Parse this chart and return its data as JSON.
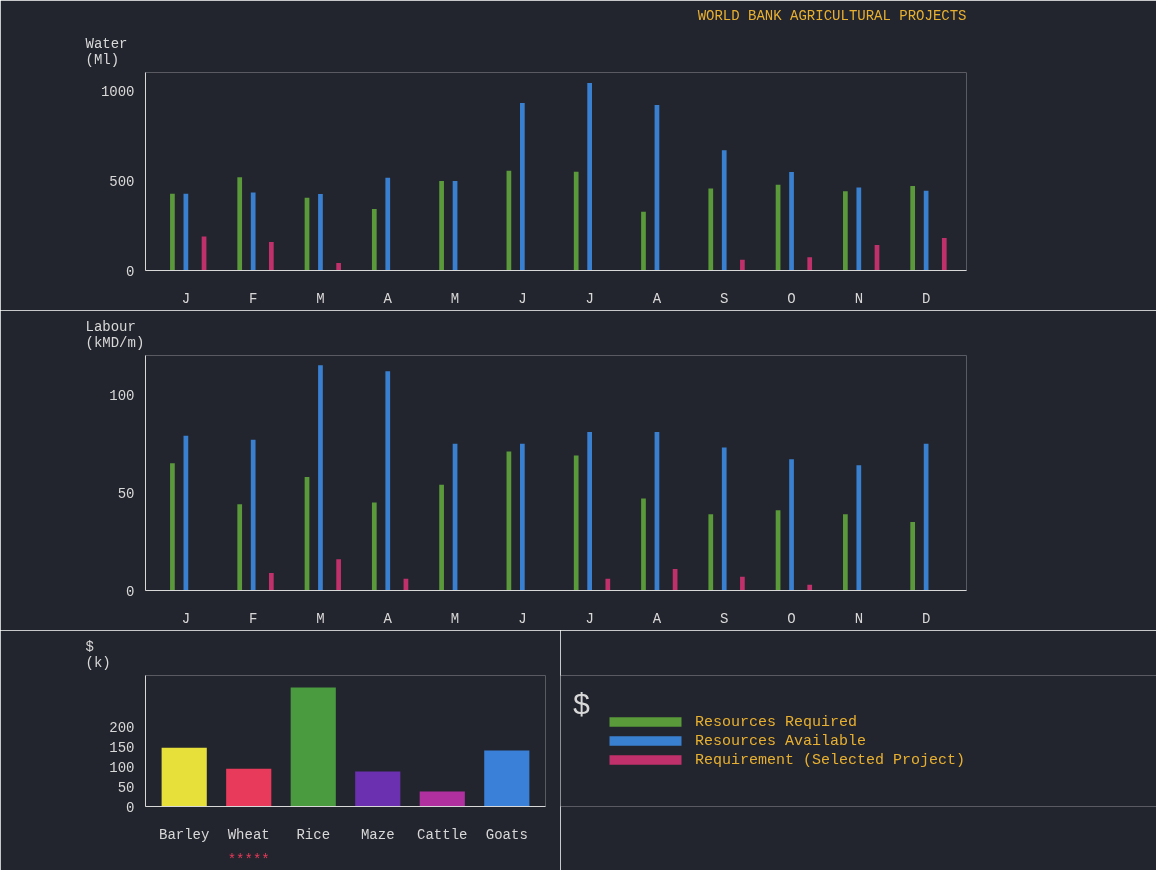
{
  "chart_data": [
    {
      "type": "bar",
      "title": "WORLD BANK AGRICULTURAL PROJECTS",
      "ylabel": "Water (Ml)",
      "categories": [
        "J",
        "F",
        "M",
        "A",
        "M",
        "J",
        "J",
        "A",
        "S",
        "O",
        "N",
        "D"
      ],
      "ylim": [
        0,
        1100
      ],
      "yticks": [
        0,
        500,
        1000
      ],
      "grid": false,
      "series": [
        {
          "color": "#5a9a3a",
          "values": [
            427,
            518,
            404,
            342,
            497,
            554,
            549,
            326,
            456,
            477,
            440,
            469
          ]
        },
        {
          "color": "#3a80d0",
          "values": [
            427,
            433,
            425,
            515,
            497,
            930,
            1042,
            920,
            668,
            547,
            461,
            443
          ]
        },
        {
          "color": "#c0306a",
          "values": [
            189,
            158,
            41,
            null,
            null,
            null,
            null,
            null,
            60,
            73,
            142,
            181
          ]
        }
      ]
    },
    {
      "type": "bar",
      "ylabel": "Labour (kMD/m)",
      "categories": [
        "J",
        "F",
        "M",
        "A",
        "M",
        "J",
        "J",
        "A",
        "S",
        "O",
        "N",
        "D"
      ],
      "ylim": [
        0,
        120
      ],
      "yticks": [
        0,
        50,
        100
      ],
      "grid": false,
      "legend": "bottom right",
      "series": [
        {
          "name": "Resources Required",
          "color": "#5a9a3a",
          "values": [
            65,
            44,
            58,
            45,
            54,
            71,
            69,
            47,
            39,
            41,
            39,
            35
          ]
        },
        {
          "name": "Resources Available",
          "color": "#3a80d0",
          "values": [
            79,
            77,
            115,
            112,
            75,
            75,
            81,
            81,
            73,
            67,
            64,
            75
          ]
        },
        {
          "name": "Requirement (Selected Project)",
          "color": "#c0306a",
          "values": [
            null,
            9,
            16,
            6,
            null,
            null,
            6,
            11,
            7,
            3,
            null,
            null
          ]
        }
      ]
    },
    {
      "type": "bar",
      "ylabel": "$ (k)",
      "categories": [
        "Barley",
        "Wheat",
        "Rice",
        "Maze",
        "Cattle",
        "Goats"
      ],
      "values": [
        148,
        95,
        300,
        88,
        38,
        141
      ],
      "colors": [
        "#e8e03a",
        "#e83a5a",
        "#4a9a40",
        "#6a30b0",
        "#b030a0",
        "#3a80d8"
      ],
      "ylim": [
        0,
        330
      ],
      "yticks": [
        0,
        50,
        100,
        150,
        200
      ],
      "grid": false,
      "annotations": [
        "*****",
        "$"
      ]
    }
  ]
}
